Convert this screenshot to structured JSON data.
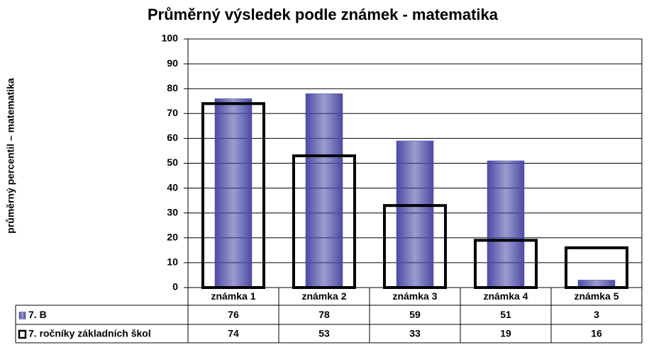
{
  "chart_data": {
    "type": "bar",
    "title": "Průměrný výsledek podle známek - matematika",
    "y_label": "průměrný percentil – matematika",
    "categories": [
      "známka 1",
      "známka 2",
      "známka 3",
      "známka 4",
      "známka 5"
    ],
    "series": [
      {
        "name": "7. B",
        "color": "#4b4ba6",
        "style": "filled",
        "values": [
          76,
          78,
          59,
          51,
          3
        ]
      },
      {
        "name": "7. ročníky základních škol",
        "color": "#000000",
        "style": "outline",
        "values": [
          74,
          53,
          33,
          19,
          16
        ]
      }
    ],
    "ylim": [
      0,
      100
    ],
    "yticks": [
      0,
      10,
      20,
      30,
      40,
      50,
      60,
      70,
      80,
      90,
      100
    ],
    "grid": true
  }
}
